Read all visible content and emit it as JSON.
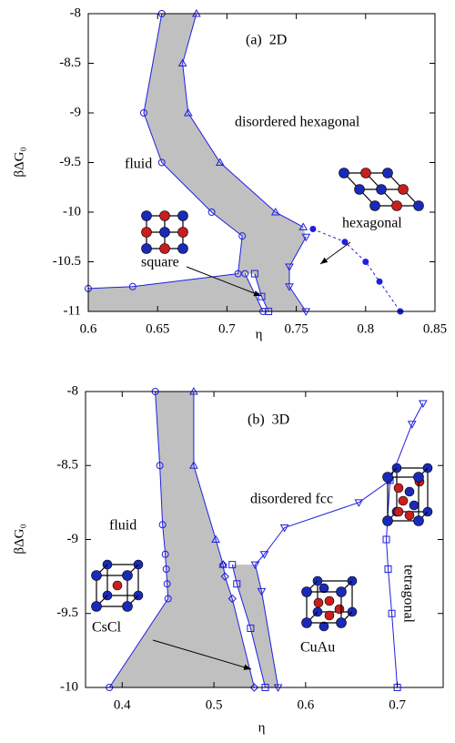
{
  "chart_data": [
    {
      "type": "line",
      "title": "(a)  2D",
      "xlabel": "η",
      "ylabel": "βΔG₀",
      "xlim": [
        0.6,
        0.85
      ],
      "xticks": [
        0.6,
        0.65,
        0.7,
        0.75,
        0.8,
        0.85
      ],
      "ylim": [
        -11,
        -8
      ],
      "yticks": [
        -8,
        -8.5,
        -9,
        -9.5,
        -10,
        -10.5,
        -11
      ],
      "fill_color": "#c0c0c0",
      "annotations": [
        "disordered hexagonal",
        "fluid",
        "hexagonal",
        "square"
      ],
      "series": [
        {
          "color": "#1f1fdf",
          "marker": "circle",
          "x": [
            0.653,
            0.64,
            0.653,
            0.689,
            0.711,
            0.708,
            0.632,
            0.6
          ],
          "values": [
            -8,
            -9,
            -9.5,
            -10,
            -10.24,
            -10.62,
            -10.75,
            -10.77
          ]
        },
        {
          "color": "#1f1fdf",
          "marker": "circle",
          "x": [
            0.713,
            0.726
          ],
          "values": [
            -10.62,
            -11
          ]
        },
        {
          "color": "#1f1fdf",
          "marker": "square",
          "x": [
            0.72,
            0.725,
            0.73
          ],
          "values": [
            -10.62,
            -10.85,
            -11
          ]
        },
        {
          "color": "#1f1fdf",
          "marker": "triangle-up",
          "x": [
            0.678,
            0.668,
            0.672,
            0.695,
            0.735,
            0.755
          ],
          "values": [
            -8,
            -8.5,
            -9,
            -9.5,
            -10,
            -10.15
          ]
        },
        {
          "color": "#1f1fdf",
          "marker": "triangle-down",
          "x": [
            0.757,
            0.745,
            0.745,
            0.757
          ],
          "values": [
            -10.25,
            -10.55,
            -10.75,
            -11
          ]
        },
        {
          "color": "#1f1fdf",
          "marker": "dot",
          "dashed": true,
          "x": [
            0.762,
            0.785,
            0.8,
            0.81,
            0.825
          ],
          "values": [
            -10.17,
            -10.3,
            -10.5,
            -10.7,
            -11
          ]
        }
      ]
    },
    {
      "type": "line",
      "title": "(b)  3D",
      "xlabel": "η",
      "ylabel": "βΔG₀",
      "xlim": [
        0.36,
        0.75
      ],
      "xticks": [
        0.4,
        0.5,
        0.6,
        0.7
      ],
      "ylim": [
        -10,
        -8
      ],
      "yticks": [
        -8,
        -8.5,
        -9,
        -9.5,
        -10
      ],
      "fill_color": "#c0c0c0",
      "annotations": [
        "disordered fcc",
        "fluid",
        "CsCl",
        "CuAu",
        "tetragonal"
      ],
      "series": [
        {
          "color": "#1f1fdf",
          "marker": "circle",
          "x": [
            0.436,
            0.441,
            0.444,
            0.447,
            0.448,
            0.449,
            0.45,
            0.386
          ],
          "values": [
            -8,
            -8.5,
            -8.9,
            -9.1,
            -9.2,
            -9.3,
            -9.4,
            -10
          ]
        },
        {
          "color": "#1f1fdf",
          "marker": "triangle-up",
          "x": [
            0.478,
            0.478,
            0.502,
            0.51
          ],
          "values": [
            -8,
            -8.5,
            -9,
            -9.17
          ]
        },
        {
          "color": "#1f1fdf",
          "marker": "diamond",
          "x": [
            0.51,
            0.512,
            0.52,
            0.544
          ],
          "values": [
            -9.17,
            -9.25,
            -9.4,
            -10
          ]
        },
        {
          "color": "#1f1fdf",
          "marker": "square",
          "x": [
            0.52,
            0.525,
            0.54,
            0.556
          ],
          "values": [
            -9.17,
            -9.3,
            -9.6,
            -10
          ]
        },
        {
          "color": "#1f1fdf",
          "marker": "triangle-down",
          "x": [
            0.728,
            0.716,
            0.692,
            0.658,
            0.577,
            0.555,
            0.545,
            0.552,
            0.57
          ],
          "values": [
            -8.08,
            -8.22,
            -8.6,
            -8.75,
            -8.92,
            -9.1,
            -9.17,
            -9.35,
            -10
          ]
        },
        {
          "color": "#1f1fdf",
          "marker": "square",
          "x": [
            0.692,
            0.688,
            0.69,
            0.694,
            0.7
          ],
          "values": [
            -8.6,
            -9,
            -9.2,
            -9.5,
            -10
          ]
        }
      ]
    }
  ]
}
